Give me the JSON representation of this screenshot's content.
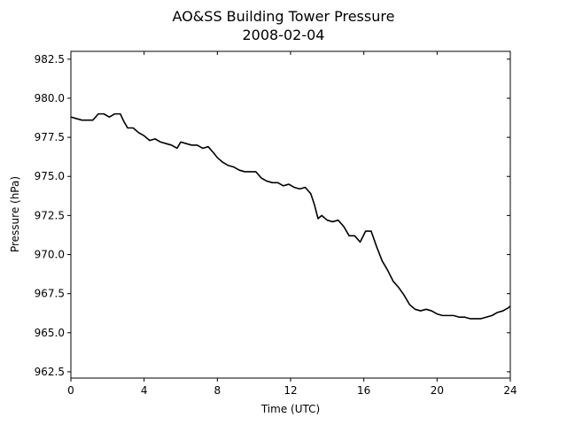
{
  "chart_data": {
    "type": "line",
    "title": "AO&SS Building Tower Pressure",
    "subtitle": "2008-02-04",
    "xlabel": "Time (UTC)",
    "ylabel": "Pressure (hPa)",
    "xlim": [
      0,
      24
    ],
    "ylim": [
      962.1,
      983.0
    ],
    "xticks": [
      0,
      4,
      8,
      12,
      16,
      20,
      24
    ],
    "xtick_labels": [
      "0",
      "4",
      "8",
      "12",
      "16",
      "20",
      "24"
    ],
    "yticks": [
      962.5,
      965.0,
      967.5,
      970.0,
      972.5,
      975.0,
      977.5,
      980.0,
      982.5
    ],
    "ytick_labels": [
      "962.5",
      "965.0",
      "967.5",
      "970.0",
      "972.5",
      "975.0",
      "977.5",
      "980.0",
      "982.5"
    ],
    "grid": false,
    "line_color": "#000000",
    "series": [
      {
        "x": [
          0,
          0.3,
          0.6,
          0.9,
          1.2,
          1.5,
          1.8,
          2.1,
          2.4,
          2.7,
          2.9,
          3.1,
          3.4,
          3.7,
          4.0,
          4.3,
          4.6,
          4.9,
          5.2,
          5.5,
          5.8,
          6.0,
          6.3,
          6.6,
          6.9,
          7.2,
          7.5,
          7.8,
          8.0,
          8.3,
          8.6,
          8.9,
          9.2,
          9.5,
          9.8,
          10.1,
          10.4,
          10.7,
          11.0,
          11.3,
          11.6,
          11.9,
          12.2,
          12.5,
          12.8,
          13.1,
          13.3,
          13.5,
          13.7,
          14.0,
          14.3,
          14.6,
          14.9,
          15.2,
          15.5,
          15.8,
          16.1,
          16.4,
          16.7,
          17.0,
          17.3,
          17.6,
          17.9,
          18.2,
          18.5,
          18.8,
          19.1,
          19.4,
          19.7,
          20.0,
          20.3,
          20.6,
          20.9,
          21.2,
          21.5,
          21.8,
          22.1,
          22.4,
          22.7,
          23.0,
          23.3,
          23.6,
          23.9,
          24.0
        ],
        "values": [
          978.8,
          978.7,
          978.6,
          978.6,
          978.6,
          979.0,
          979.0,
          978.8,
          979.0,
          979.0,
          978.5,
          978.1,
          978.1,
          977.8,
          977.6,
          977.3,
          977.4,
          977.2,
          977.1,
          977.0,
          976.8,
          977.2,
          977.1,
          977.0,
          977.0,
          976.8,
          976.9,
          976.5,
          976.2,
          975.9,
          975.7,
          975.6,
          975.4,
          975.3,
          975.3,
          975.3,
          974.9,
          974.7,
          974.6,
          974.6,
          974.4,
          974.5,
          974.3,
          974.2,
          974.3,
          973.9,
          973.2,
          972.3,
          972.5,
          972.2,
          972.1,
          972.2,
          971.8,
          971.2,
          971.2,
          970.8,
          971.5,
          971.5,
          970.5,
          969.6,
          969.0,
          968.3,
          967.9,
          967.4,
          966.8,
          966.5,
          966.4,
          966.5,
          966.4,
          966.2,
          966.1,
          966.1,
          966.1,
          966.0,
          966.0,
          965.9,
          965.9,
          965.9,
          966.0,
          966.1,
          966.3,
          966.4,
          966.6,
          966.7
        ]
      }
    ]
  }
}
